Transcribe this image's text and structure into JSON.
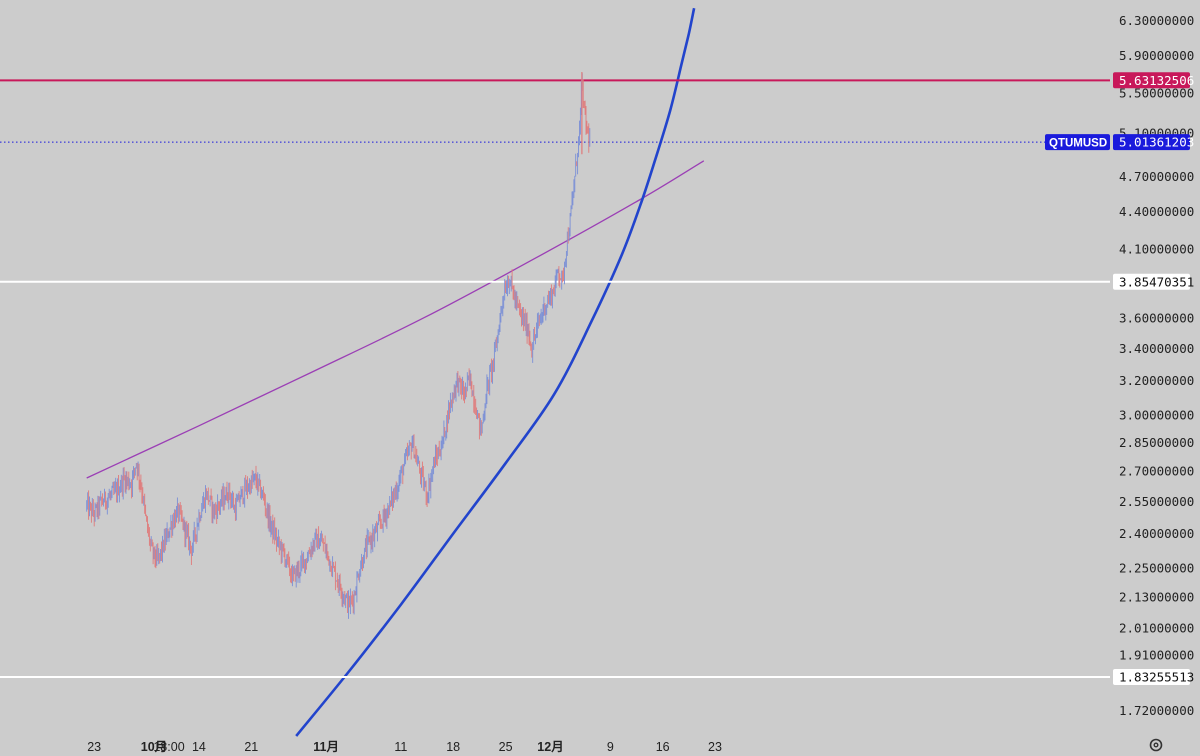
{
  "chart_data": {
    "type": "candlestick",
    "symbol": "QTUMUSD",
    "last_price": "5.01361203",
    "y_scale": "log",
    "ylim": [
      1.64,
      6.55
    ],
    "y_ticks": [
      "6.30000000",
      "5.90000000",
      "5.50000000",
      "5.10000000",
      "4.70000000",
      "4.40000000",
      "4.10000000",
      "3.60000000",
      "3.40000000",
      "3.20000000",
      "3.00000000",
      "2.85000000",
      "2.70000000",
      "2.55000000",
      "2.40000000",
      "2.25000000",
      "2.13000000",
      "2.01000000",
      "1.91000000",
      "1.72000000"
    ],
    "x_ticks": [
      {
        "label": "23",
        "day": -10
      },
      {
        "label": "10月",
        "day": -2,
        "bold": true
      },
      {
        "label": "18:00",
        "day": 0
      },
      {
        "label": "14",
        "day": 4
      },
      {
        "label": "21",
        "day": 11
      },
      {
        "label": "11月",
        "day": 21,
        "bold": true
      },
      {
        "label": "11",
        "day": 31
      },
      {
        "label": "18",
        "day": 38
      },
      {
        "label": "25",
        "day": 45
      },
      {
        "label": "12月",
        "day": 51,
        "bold": true
      },
      {
        "label": "9",
        "day": 59
      },
      {
        "label": "16",
        "day": 66
      },
      {
        "label": "23",
        "day": 73
      }
    ],
    "horizontal_levels": [
      {
        "price": 5.63132506,
        "label": "5.63132506",
        "color": "#c8185a",
        "text_color": "#ffffff",
        "style": "solid"
      },
      {
        "price": 3.85470351,
        "label": "3.85470351",
        "color": "#ffffff",
        "text_color": "#111111",
        "style": "solid"
      },
      {
        "price": 1.83255513,
        "label": "1.83255513",
        "color": "#ffffff",
        "text_color": "#111111",
        "style": "solid"
      },
      {
        "price": 5.01361203,
        "label": "5.01361203",
        "color": "#1a1adc",
        "text_color": "#ffffff",
        "style": "dotted"
      }
    ],
    "trend_curves": [
      {
        "name": "purple-trend",
        "color": "#9b3fb5",
        "points": [
          [
            -11.0,
            2.665
          ],
          [
            4.0,
            2.94
          ],
          [
            19.0,
            3.25
          ],
          [
            34.0,
            3.6
          ],
          [
            49.0,
            4.03
          ],
          [
            63.0,
            4.5
          ],
          [
            71.5,
            4.84
          ]
        ]
      },
      {
        "name": "blue-arc",
        "color": "#2244cc",
        "points": [
          [
            17.0,
            1.64
          ],
          [
            24.0,
            1.85
          ],
          [
            31.0,
            2.1
          ],
          [
            38.0,
            2.4
          ],
          [
            45.0,
            2.74
          ],
          [
            51.5,
            3.12
          ],
          [
            56.5,
            3.58
          ],
          [
            60.5,
            4.05
          ],
          [
            63.0,
            4.45
          ],
          [
            65.0,
            4.85
          ],
          [
            67.0,
            5.32
          ],
          [
            68.5,
            5.8
          ],
          [
            69.5,
            6.15
          ],
          [
            70.2,
            6.45
          ]
        ]
      }
    ],
    "price_path": [
      [
        -11.0,
        2.53
      ],
      [
        -10.0,
        2.49
      ],
      [
        -9.0,
        2.55
      ],
      [
        -8.0,
        2.57
      ],
      [
        -7.0,
        2.6
      ],
      [
        -6.0,
        2.66
      ],
      [
        -5.0,
        2.64
      ],
      [
        -4.4,
        2.75
      ],
      [
        -3.6,
        2.6
      ],
      [
        -3.0,
        2.44
      ],
      [
        -2.3,
        2.32
      ],
      [
        -1.5,
        2.28
      ],
      [
        -0.5,
        2.37
      ],
      [
        0.5,
        2.46
      ],
      [
        1.2,
        2.5
      ],
      [
        2.0,
        2.43
      ],
      [
        3.0,
        2.33
      ],
      [
        4.0,
        2.48
      ],
      [
        5.0,
        2.59
      ],
      [
        6.0,
        2.5
      ],
      [
        7.0,
        2.55
      ],
      [
        8.0,
        2.6
      ],
      [
        8.8,
        2.51
      ],
      [
        9.5,
        2.57
      ],
      [
        10.5,
        2.62
      ],
      [
        11.5,
        2.66
      ],
      [
        12.5,
        2.58
      ],
      [
        13.5,
        2.45
      ],
      [
        14.5,
        2.36
      ],
      [
        15.5,
        2.3
      ],
      [
        16.5,
        2.21
      ],
      [
        17.5,
        2.25
      ],
      [
        18.5,
        2.3
      ],
      [
        19.5,
        2.37
      ],
      [
        20.5,
        2.36
      ],
      [
        21.5,
        2.28
      ],
      [
        22.5,
        2.2
      ],
      [
        23.5,
        2.13
      ],
      [
        24.0,
        2.1
      ],
      [
        24.7,
        2.13
      ],
      [
        25.5,
        2.25
      ],
      [
        26.5,
        2.35
      ],
      [
        27.5,
        2.4
      ],
      [
        28.5,
        2.46
      ],
      [
        29.5,
        2.53
      ],
      [
        30.5,
        2.62
      ],
      [
        31.5,
        2.74
      ],
      [
        32.5,
        2.85
      ],
      [
        33.5,
        2.7
      ],
      [
        34.5,
        2.58
      ],
      [
        35.5,
        2.75
      ],
      [
        36.5,
        2.84
      ],
      [
        37.5,
        3.05
      ],
      [
        38.5,
        3.2
      ],
      [
        39.5,
        3.12
      ],
      [
        40.2,
        3.22
      ],
      [
        41.0,
        3.05
      ],
      [
        41.7,
        2.9
      ],
      [
        42.5,
        3.15
      ],
      [
        43.5,
        3.35
      ],
      [
        44.2,
        3.58
      ],
      [
        44.8,
        3.8
      ],
      [
        45.5,
        3.88
      ],
      [
        46.3,
        3.72
      ],
      [
        47.0,
        3.62
      ],
      [
        48.0,
        3.52
      ],
      [
        48.5,
        3.4
      ],
      [
        49.3,
        3.55
      ],
      [
        50.2,
        3.68
      ],
      [
        51.0,
        3.75
      ],
      [
        51.6,
        3.82
      ],
      [
        52.0,
        3.95
      ],
      [
        52.6,
        3.85
      ],
      [
        53.1,
        4.12
      ],
      [
        53.6,
        4.3
      ],
      [
        54.1,
        4.6
      ],
      [
        54.5,
        4.85
      ],
      [
        54.9,
        5.15
      ],
      [
        55.2,
        5.63
      ],
      [
        55.5,
        5.3
      ],
      [
        55.9,
        5.12
      ],
      [
        56.3,
        5.01
      ]
    ]
  }
}
